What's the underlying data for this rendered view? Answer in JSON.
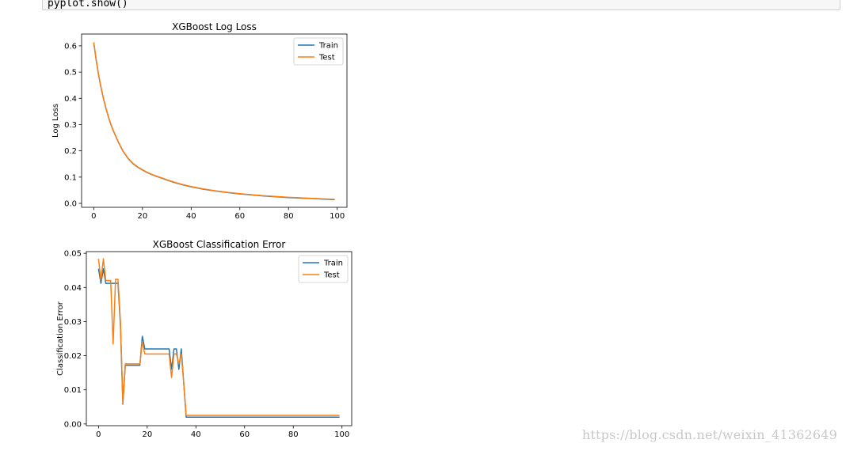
{
  "code": {
    "line": "pyplot.show()"
  },
  "watermark": "https://blog.csdn.net/weixin_41362649",
  "colors": {
    "train": "#1f77b4",
    "test": "#ff7f0e"
  },
  "chart_data": [
    {
      "type": "line",
      "title": "XGBoost Log Loss",
      "xlabel": "",
      "ylabel": "Log Loss",
      "xlim": [
        -5,
        104
      ],
      "ylim": [
        -0.015,
        0.645
      ],
      "xticks": [
        0,
        20,
        40,
        60,
        80,
        100
      ],
      "yticks": [
        0.0,
        0.1,
        0.2,
        0.3,
        0.4,
        0.5,
        0.6
      ],
      "ytick_labels": [
        "0.0",
        "0.1",
        "0.2",
        "0.3",
        "0.4",
        "0.5",
        "0.6"
      ],
      "legend": "upper-right",
      "grid": false,
      "series": [
        {
          "name": "Train",
          "x": [
            0,
            1,
            2,
            3,
            4,
            5,
            6,
            7,
            8,
            9,
            10,
            12,
            14,
            16,
            18,
            20,
            22,
            24,
            26,
            28,
            30,
            33,
            36,
            40,
            45,
            50,
            55,
            60,
            65,
            70,
            75,
            80,
            85,
            90,
            95,
            99
          ],
          "y": [
            0.612,
            0.545,
            0.488,
            0.44,
            0.398,
            0.362,
            0.33,
            0.301,
            0.277,
            0.256,
            0.235,
            0.199,
            0.172,
            0.152,
            0.138,
            0.127,
            0.117,
            0.109,
            0.102,
            0.096,
            0.089,
            0.08,
            0.072,
            0.063,
            0.054,
            0.047,
            0.041,
            0.036,
            0.032,
            0.028,
            0.025,
            0.022,
            0.02,
            0.018,
            0.016,
            0.014
          ]
        },
        {
          "name": "Test",
          "x": [
            0,
            1,
            2,
            3,
            4,
            5,
            6,
            7,
            8,
            9,
            10,
            12,
            14,
            16,
            18,
            20,
            22,
            24,
            26,
            28,
            30,
            33,
            36,
            40,
            45,
            50,
            55,
            60,
            65,
            70,
            75,
            80,
            85,
            90,
            95,
            99
          ],
          "y": [
            0.613,
            0.546,
            0.489,
            0.441,
            0.399,
            0.363,
            0.331,
            0.302,
            0.278,
            0.257,
            0.236,
            0.2,
            0.173,
            0.153,
            0.139,
            0.128,
            0.118,
            0.11,
            0.103,
            0.097,
            0.09,
            0.081,
            0.073,
            0.064,
            0.055,
            0.048,
            0.042,
            0.037,
            0.033,
            0.029,
            0.026,
            0.023,
            0.021,
            0.019,
            0.017,
            0.015
          ]
        }
      ]
    },
    {
      "type": "line",
      "title": "XGBoost Classification Error",
      "xlabel": "",
      "ylabel": "Classification Error",
      "xlim": [
        -5,
        104
      ],
      "ylim": [
        -0.0005,
        0.0505
      ],
      "xticks": [
        0,
        20,
        40,
        60,
        80,
        100
      ],
      "yticks": [
        0.0,
        0.01,
        0.02,
        0.03,
        0.04,
        0.05
      ],
      "ytick_labels": [
        "0.00",
        "0.01",
        "0.02",
        "0.03",
        "0.04",
        "0.05"
      ],
      "legend": "upper-right",
      "grid": false,
      "series": [
        {
          "name": "Train",
          "x": [
            0,
            1,
            2,
            3,
            4,
            5,
            6,
            7,
            8,
            9,
            10,
            11,
            12,
            13,
            14,
            15,
            16,
            17,
            18,
            19,
            20,
            21,
            22,
            23,
            24,
            25,
            26,
            27,
            28,
            29,
            30,
            31,
            32,
            33,
            34,
            35,
            36,
            37,
            40,
            60,
            80,
            99
          ],
          "y": [
            0.0455,
            0.0412,
            0.0455,
            0.0412,
            0.0412,
            0.0412,
            0.0412,
            0.0412,
            0.0412,
            0.029,
            0.0058,
            0.0172,
            0.0172,
            0.0172,
            0.0172,
            0.0172,
            0.0172,
            0.0172,
            0.0257,
            0.022,
            0.022,
            0.022,
            0.022,
            0.022,
            0.022,
            0.022,
            0.022,
            0.022,
            0.022,
            0.022,
            0.016,
            0.022,
            0.022,
            0.016,
            0.022,
            0.012,
            0.002,
            0.002,
            0.002,
            0.002,
            0.002,
            0.002
          ]
        },
        {
          "name": "Test",
          "x": [
            0,
            1,
            2,
            3,
            4,
            5,
            6,
            7,
            8,
            9,
            10,
            11,
            12,
            13,
            14,
            15,
            16,
            17,
            18,
            19,
            20,
            21,
            22,
            23,
            24,
            25,
            26,
            27,
            28,
            29,
            30,
            31,
            32,
            33,
            34,
            35,
            36,
            37,
            40,
            60,
            80,
            99
          ],
          "y": [
            0.0484,
            0.042,
            0.0484,
            0.042,
            0.042,
            0.042,
            0.0234,
            0.0424,
            0.0424,
            0.03,
            0.006,
            0.0176,
            0.0176,
            0.0176,
            0.0176,
            0.0176,
            0.0176,
            0.0176,
            0.0242,
            0.0205,
            0.0205,
            0.0205,
            0.0205,
            0.0205,
            0.0205,
            0.0205,
            0.0205,
            0.0205,
            0.0205,
            0.0205,
            0.0136,
            0.0205,
            0.0205,
            0.0176,
            0.0205,
            0.012,
            0.0025,
            0.0025,
            0.0025,
            0.0025,
            0.0025,
            0.0025
          ]
        }
      ]
    }
  ]
}
